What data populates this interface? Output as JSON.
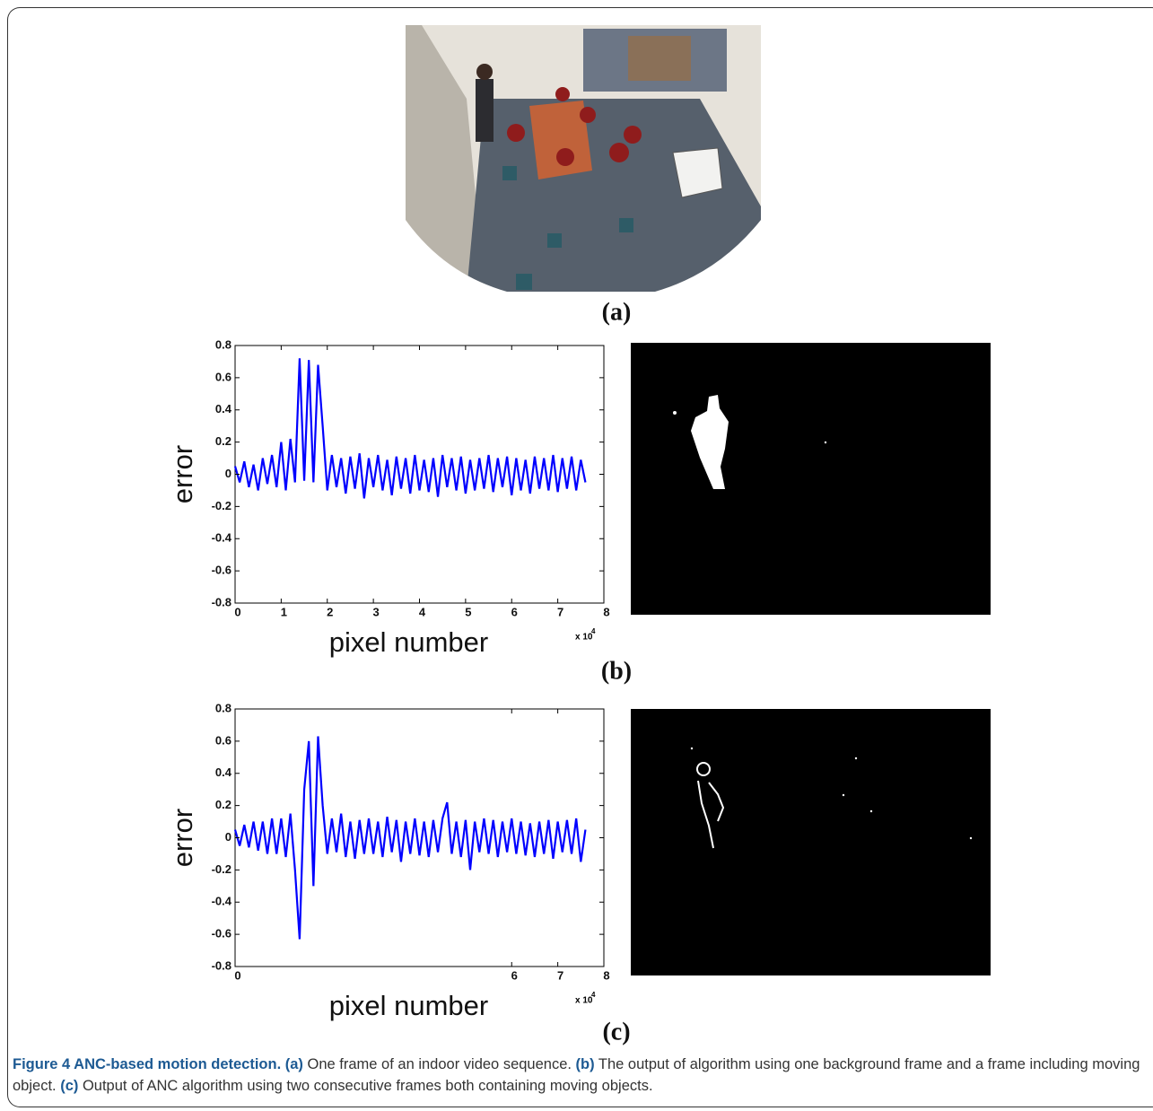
{
  "chart_data": [
    {
      "type": "line",
      "ylabel": "error",
      "xlabel": "pixel number",
      "x_scale_base": "x 10",
      "x_scale_exponent": "4",
      "color": "#0000ff",
      "xlim": [
        0,
        8
      ],
      "xticks": [
        0,
        1,
        2,
        3,
        4,
        5,
        6,
        7,
        8
      ],
      "ylim": [
        -0.8,
        0.8
      ],
      "yticks": [
        0.8,
        0.6,
        0.4,
        0.2,
        0,
        -0.2,
        -0.4,
        -0.6,
        -0.8
      ],
      "x": [
        0,
        0.1,
        0.2,
        0.3,
        0.4,
        0.5,
        0.6,
        0.7,
        0.8,
        0.9,
        1,
        1.1,
        1.2,
        1.3,
        1.4,
        1.5,
        1.6,
        1.7,
        1.8,
        1.9,
        2,
        2.1,
        2.2,
        2.3,
        2.4,
        2.5,
        2.6,
        2.7,
        2.8,
        2.9,
        3,
        3.1,
        3.2,
        3.3,
        3.4,
        3.5,
        3.6,
        3.7,
        3.8,
        3.9,
        4,
        4.1,
        4.2,
        4.3,
        4.4,
        4.5,
        4.6,
        4.7,
        4.8,
        4.9,
        5,
        5.1,
        5.2,
        5.3,
        5.4,
        5.5,
        5.6,
        5.7,
        5.8,
        5.9,
        6,
        6.1,
        6.2,
        6.3,
        6.4,
        6.5,
        6.6,
        6.7,
        6.8,
        6.9,
        7,
        7.1,
        7.2,
        7.3,
        7.4,
        7.5,
        7.6
      ],
      "values": [
        0.05,
        -0.05,
        0.08,
        -0.08,
        0.06,
        -0.1,
        0.1,
        -0.06,
        0.12,
        -0.08,
        0.2,
        -0.1,
        0.22,
        -0.05,
        0.72,
        -0.04,
        0.71,
        -0.05,
        0.68,
        0.3,
        -0.1,
        0.12,
        -0.08,
        0.1,
        -0.12,
        0.11,
        -0.09,
        0.13,
        -0.15,
        0.1,
        -0.08,
        0.12,
        -0.1,
        0.09,
        -0.13,
        0.11,
        -0.09,
        0.1,
        -0.12,
        0.12,
        -0.1,
        0.09,
        -0.11,
        0.1,
        -0.14,
        0.12,
        -0.08,
        0.1,
        -0.1,
        0.11,
        -0.12,
        0.09,
        -0.1,
        0.1,
        -0.09,
        0.12,
        -0.11,
        0.1,
        -0.08,
        0.11,
        -0.13,
        0.1,
        -0.1,
        0.09,
        -0.12,
        0.11,
        -0.09,
        0.1,
        -0.1,
        0.12,
        -0.11,
        0.1,
        -0.09,
        0.11,
        -0.1,
        0.09,
        -0.05
      ]
    },
    {
      "type": "line",
      "ylabel": "error",
      "xlabel": "pixel number",
      "x_scale_base": "x 10",
      "x_scale_exponent": "4",
      "color": "#0000ff",
      "xlim": [
        0,
        8
      ],
      "xticks": [
        0,
        6,
        7,
        8
      ],
      "ylim": [
        -0.8,
        0.8
      ],
      "yticks": [
        0.8,
        0.6,
        0.4,
        0.2,
        0,
        -0.2,
        -0.4,
        -0.6,
        -0.8
      ],
      "x": [
        0,
        0.1,
        0.2,
        0.3,
        0.4,
        0.5,
        0.6,
        0.7,
        0.8,
        0.9,
        1,
        1.1,
        1.2,
        1.3,
        1.4,
        1.5,
        1.6,
        1.7,
        1.8,
        1.9,
        2,
        2.1,
        2.2,
        2.3,
        2.4,
        2.5,
        2.6,
        2.7,
        2.8,
        2.9,
        3,
        3.1,
        3.2,
        3.3,
        3.4,
        3.5,
        3.6,
        3.7,
        3.8,
        3.9,
        4,
        4.1,
        4.2,
        4.3,
        4.4,
        4.5,
        4.6,
        4.7,
        4.8,
        4.9,
        5,
        5.1,
        5.2,
        5.3,
        5.4,
        5.5,
        5.6,
        5.7,
        5.8,
        5.9,
        6,
        6.1,
        6.2,
        6.3,
        6.4,
        6.5,
        6.6,
        6.7,
        6.8,
        6.9,
        7,
        7.1,
        7.2,
        7.3,
        7.4,
        7.5,
        7.6
      ],
      "values": [
        0.05,
        -0.05,
        0.08,
        -0.06,
        0.1,
        -0.08,
        0.1,
        -0.1,
        0.12,
        -0.1,
        0.12,
        -0.12,
        0.15,
        -0.2,
        -0.63,
        0.3,
        0.6,
        -0.3,
        0.63,
        0.2,
        -0.1,
        0.12,
        -0.09,
        0.15,
        -0.12,
        0.1,
        -0.13,
        0.11,
        -0.1,
        0.12,
        -0.1,
        0.1,
        -0.12,
        0.13,
        -0.09,
        0.11,
        -0.15,
        0.1,
        -0.1,
        0.12,
        -0.11,
        0.1,
        -0.12,
        0.11,
        -0.09,
        0.12,
        0.22,
        -0.1,
        0.1,
        -0.12,
        0.11,
        -0.2,
        0.1,
        -0.09,
        0.12,
        -0.1,
        0.11,
        -0.12,
        0.1,
        -0.09,
        0.12,
        -0.1,
        0.1,
        -0.11,
        0.09,
        -0.12,
        0.1,
        -0.1,
        0.11,
        -0.13,
        0.1,
        -0.09,
        0.11,
        -0.1,
        0.12,
        -0.15,
        0.05
      ]
    }
  ],
  "panel_labels": [
    "(a)",
    "(b)",
    "(c)"
  ],
  "caption": {
    "title": "Figure 4 ANC-based motion detection.",
    "parts": [
      {
        "label": "(a)",
        "text": " One frame of an indoor video sequence. "
      },
      {
        "label": "(b)",
        "text": " The output of algorithm using one background frame and a frame including moving object. "
      },
      {
        "label": "(c)",
        "text": " Output of ANC algorithm using two consecutive frames both containing moving objects."
      }
    ]
  }
}
